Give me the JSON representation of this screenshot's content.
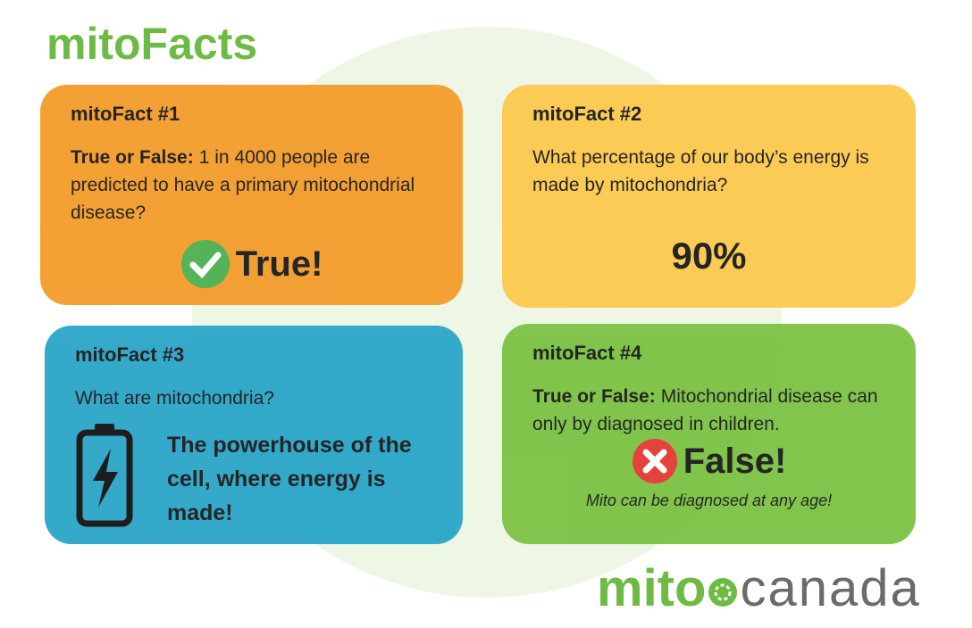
{
  "header": {
    "title": "mitoFacts"
  },
  "cards": [
    {
      "heading": "mitoFact #1",
      "lead": "True or False:",
      "text": "1 in 4000 people are predicted to have a primary mitochondrial disease?",
      "answer": "True!"
    },
    {
      "heading": "mitoFact #2",
      "text": "What percentage of our body’s energy is made by mitochondria?",
      "answer": "90%"
    },
    {
      "heading": "mitoFact #3",
      "text": "What are mitochondria?",
      "answer": "The powerhouse of the cell, where energy is made!"
    },
    {
      "heading": "mitoFact #4",
      "lead": "True or False:",
      "text": "Mitochondrial disease can only by diagnosed in children.",
      "answer": "False!",
      "note": "Mito can be diagnosed at any age!"
    }
  ],
  "logo": {
    "left": "mito",
    "right": "canada"
  }
}
